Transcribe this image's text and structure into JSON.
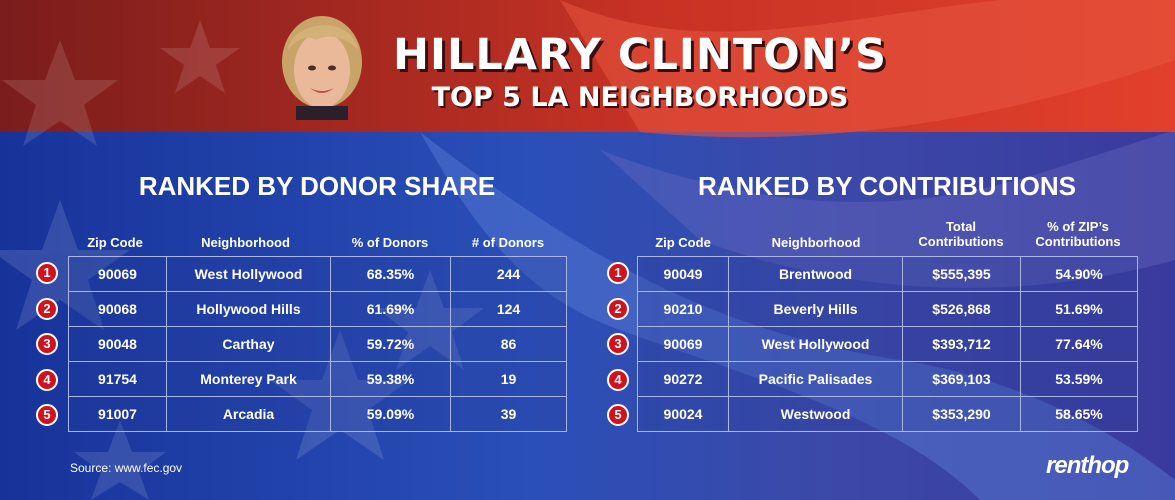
{
  "header": {
    "title": "HILLARY CLINTON’S",
    "subtitle": "TOP 5 LA NEIGHBORHOODS"
  },
  "left": {
    "title": "RANKED BY DONOR SHARE",
    "columns": [
      "Zip Code",
      "Neighborhood",
      "% of Donors",
      "# of Donors"
    ],
    "rows": [
      {
        "rank": "1",
        "zip": "90069",
        "neighborhood": "West Hollywood",
        "pct": "68.35%",
        "count": "244"
      },
      {
        "rank": "2",
        "zip": "90068",
        "neighborhood": "Hollywood Hills",
        "pct": "61.69%",
        "count": "124"
      },
      {
        "rank": "3",
        "zip": "90048",
        "neighborhood": "Carthay",
        "pct": "59.72%",
        "count": "86"
      },
      {
        "rank": "4",
        "zip": "91754",
        "neighborhood": "Monterey Park",
        "pct": "59.38%",
        "count": "19"
      },
      {
        "rank": "5",
        "zip": "91007",
        "neighborhood": "Arcadia",
        "pct": "59.09%",
        "count": "39"
      }
    ]
  },
  "right": {
    "title": "RANKED BY CONTRIBUTIONS",
    "columns": [
      "Zip Code",
      "Neighborhood",
      "Total\nContributions",
      "% of ZIP’s\nContributions"
    ],
    "rows": [
      {
        "rank": "1",
        "zip": "90049",
        "neighborhood": "Brentwood",
        "total": "$555,395",
        "pct": "54.90%"
      },
      {
        "rank": "2",
        "zip": "90210",
        "neighborhood": "Beverly Hills",
        "total": "$526,868",
        "pct": "51.69%"
      },
      {
        "rank": "3",
        "zip": "90069",
        "neighborhood": "West Hollywood",
        "total": "$393,712",
        "pct": "77.64%"
      },
      {
        "rank": "4",
        "zip": "90272",
        "neighborhood": "Pacific Palisades",
        "total": "$369,103",
        "pct": "53.59%"
      },
      {
        "rank": "5",
        "zip": "90024",
        "neighborhood": "Westwood",
        "total": "$353,290",
        "pct": "58.65%"
      }
    ]
  },
  "footer": {
    "source": "Source: www.fec.gov",
    "logo": "renthop"
  },
  "colors": {
    "red_top": "#c42b22",
    "blue_bottom": "#1e3fa0",
    "rank_badge": "#d0121d"
  }
}
